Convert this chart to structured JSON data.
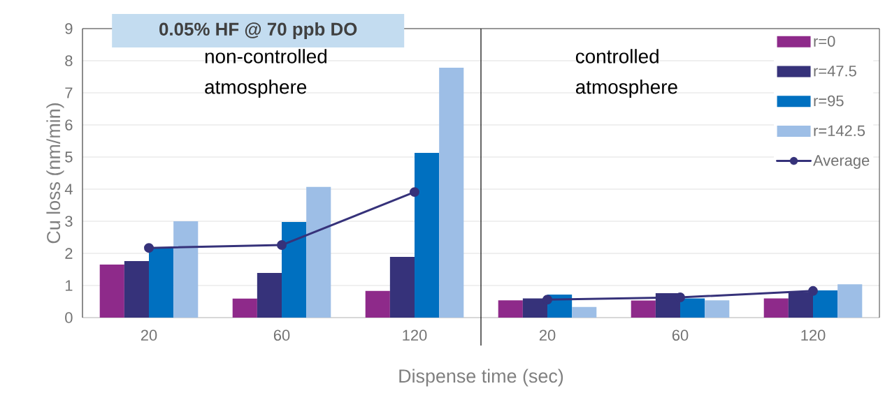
{
  "chart_data": [
    {
      "type": "bar",
      "title": "0.05% HF @ 70 ppb DO",
      "xlabel": "Dispense time (sec)",
      "ylabel": "Cu loss (nm/min)",
      "categories": [
        "20",
        "60",
        "120"
      ],
      "series": [
        {
          "color": "#8e2a8a",
          "values": [
            1.65,
            0.59,
            0.83
          ]
        },
        {
          "color": "#36327a",
          "values": [
            1.76,
            1.39,
            1.89
          ]
        },
        {
          "color": "#0070c0",
          "values": [
            2.15,
            2.98,
            5.13
          ]
        },
        {
          "color": "#9dbee6",
          "values": [
            3.0,
            4.07,
            7.78
          ]
        },
        {
          "type": "line",
          "color": "#36327a",
          "marker": "circle",
          "values": [
            2.17,
            2.26,
            3.91
          ]
        }
      ],
      "annotations": [
        "non-controlled atmosphere"
      ],
      "ylim": [
        0,
        9
      ],
      "yticks": [
        0,
        1,
        2,
        3,
        4,
        5,
        6,
        7,
        8,
        9
      ],
      "grid": "y"
    },
    {
      "type": "bar",
      "categories": [
        "20",
        "60",
        "120"
      ],
      "series": [
        {
          "name": "r=0",
          "color": "#8e2a8a",
          "values": [
            0.54,
            0.53,
            0.6
          ]
        },
        {
          "name": "r=47.5",
          "color": "#36327a",
          "values": [
            0.6,
            0.76,
            0.8
          ]
        },
        {
          "name": "r=95",
          "color": "#0070c0",
          "values": [
            0.72,
            0.6,
            0.85
          ]
        },
        {
          "name": "r=142.5",
          "color": "#9dbee6",
          "values": [
            0.33,
            0.54,
            1.04
          ]
        },
        {
          "name": "Average",
          "type": "line",
          "color": "#36327a",
          "marker": "circle",
          "values": [
            0.56,
            0.63,
            0.83
          ]
        }
      ],
      "annotations": [
        "controlled atmosphere"
      ],
      "ylim": [
        0,
        9
      ],
      "yticks": [
        0,
        1,
        2,
        3,
        4,
        5,
        6,
        7,
        8,
        9
      ],
      "grid": "y",
      "tick_labels": "x",
      "legend": "top right"
    }
  ]
}
